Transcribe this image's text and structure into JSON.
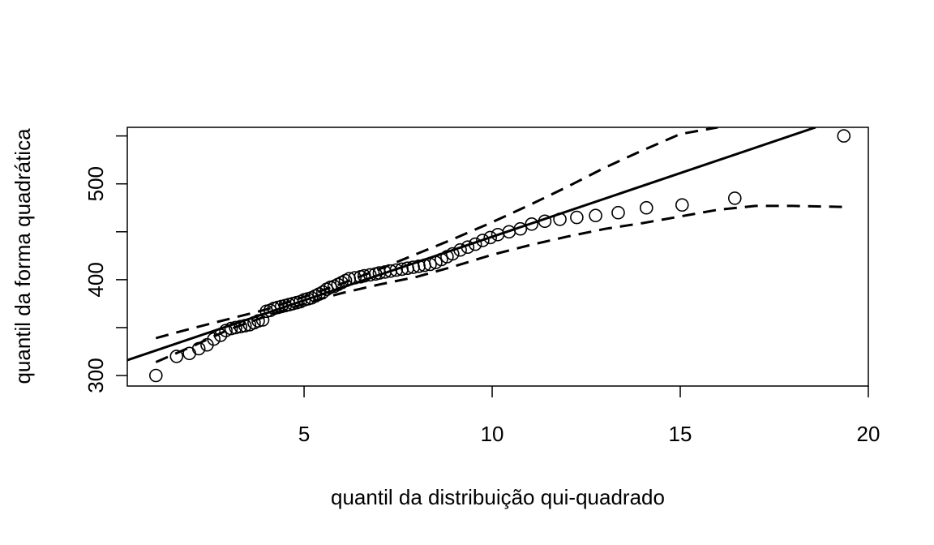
{
  "chart_data": {
    "type": "scatter",
    "title": "",
    "xlabel": "quantil da distribuição qui-quadrado",
    "ylabel": "quantil da forma quadrática",
    "xlim": [
      0.3,
      20.0
    ],
    "ylim": [
      289,
      559
    ],
    "xticks": [
      5,
      10,
      15,
      20
    ],
    "xtick_labels": [
      "5",
      "10",
      "15",
      "20"
    ],
    "yticks": [
      300,
      350,
      400,
      450,
      500,
      550
    ],
    "ytick_labels": [
      "300",
      "",
      "400",
      "",
      "500",
      ""
    ],
    "grid": false,
    "legend": false,
    "points": {
      "x": [
        1.06,
        1.61,
        1.95,
        2.2,
        2.42,
        2.6,
        2.78,
        2.92,
        3.06,
        3.18,
        3.31,
        3.43,
        3.55,
        3.67,
        3.78,
        3.9,
        4.0,
        4.1,
        4.2,
        4.3,
        4.4,
        4.5,
        4.6,
        4.7,
        4.8,
        4.9,
        5.0,
        5.1,
        5.2,
        5.3,
        5.4,
        5.5,
        5.6,
        5.7,
        5.8,
        5.9,
        6.0,
        6.1,
        6.2,
        6.35,
        6.5,
        6.6,
        6.75,
        6.9,
        7.0,
        7.15,
        7.3,
        7.45,
        7.6,
        7.75,
        7.9,
        8.05,
        8.2,
        8.35,
        8.5,
        8.65,
        8.8,
        8.95,
        9.15,
        9.35,
        9.55,
        9.75,
        9.95,
        10.15,
        10.45,
        10.75,
        11.05,
        11.4,
        11.8,
        12.25,
        12.75,
        13.35,
        14.1,
        15.05,
        16.45,
        19.35
      ],
      "y": [
        300,
        320,
        323,
        328,
        332,
        338,
        342,
        347,
        349,
        350,
        351,
        352,
        353,
        355,
        357,
        358,
        367,
        368,
        370,
        371,
        372,
        373,
        374,
        375,
        376,
        377,
        379,
        380,
        381,
        383,
        385,
        387,
        390,
        392,
        393,
        395,
        397,
        399,
        401,
        402,
        403,
        404,
        405,
        406,
        407,
        408,
        409,
        410,
        411,
        412,
        413,
        414,
        415,
        416,
        418,
        421,
        424,
        427,
        431,
        434,
        437,
        441,
        444,
        447,
        450,
        453,
        458,
        461,
        463,
        465,
        467,
        470,
        475,
        478,
        485,
        550
      ]
    },
    "reference_line": {
      "style": "solid",
      "x": [
        0.3,
        18.6
      ],
      "y": [
        316,
        559
      ]
    },
    "upper_envelope": {
      "style": "dashed",
      "x": [
        1.06,
        2.0,
        3.0,
        4.0,
        5.0,
        6.0,
        7.0,
        8.0,
        9.0,
        10.0,
        11.0,
        12.0,
        13.0,
        14.0,
        15.0,
        16.0
      ],
      "y": [
        339,
        349,
        359,
        369,
        382,
        396,
        411,
        427,
        443,
        460,
        478,
        497,
        517,
        535,
        552,
        559
      ]
    },
    "lower_envelope": {
      "style": "dashed",
      "x": [
        1.06,
        2.0,
        3.0,
        4.0,
        5.0,
        6.0,
        7.0,
        8.0,
        9.0,
        10.0,
        11.0,
        12.0,
        13.0,
        14.0,
        15.0,
        16.0,
        17.0,
        18.0,
        19.3
      ],
      "y": [
        314,
        330,
        348,
        362,
        375,
        386,
        395,
        403,
        414,
        426,
        436,
        445,
        453,
        459,
        466,
        473,
        477,
        477,
        476
      ]
    }
  }
}
